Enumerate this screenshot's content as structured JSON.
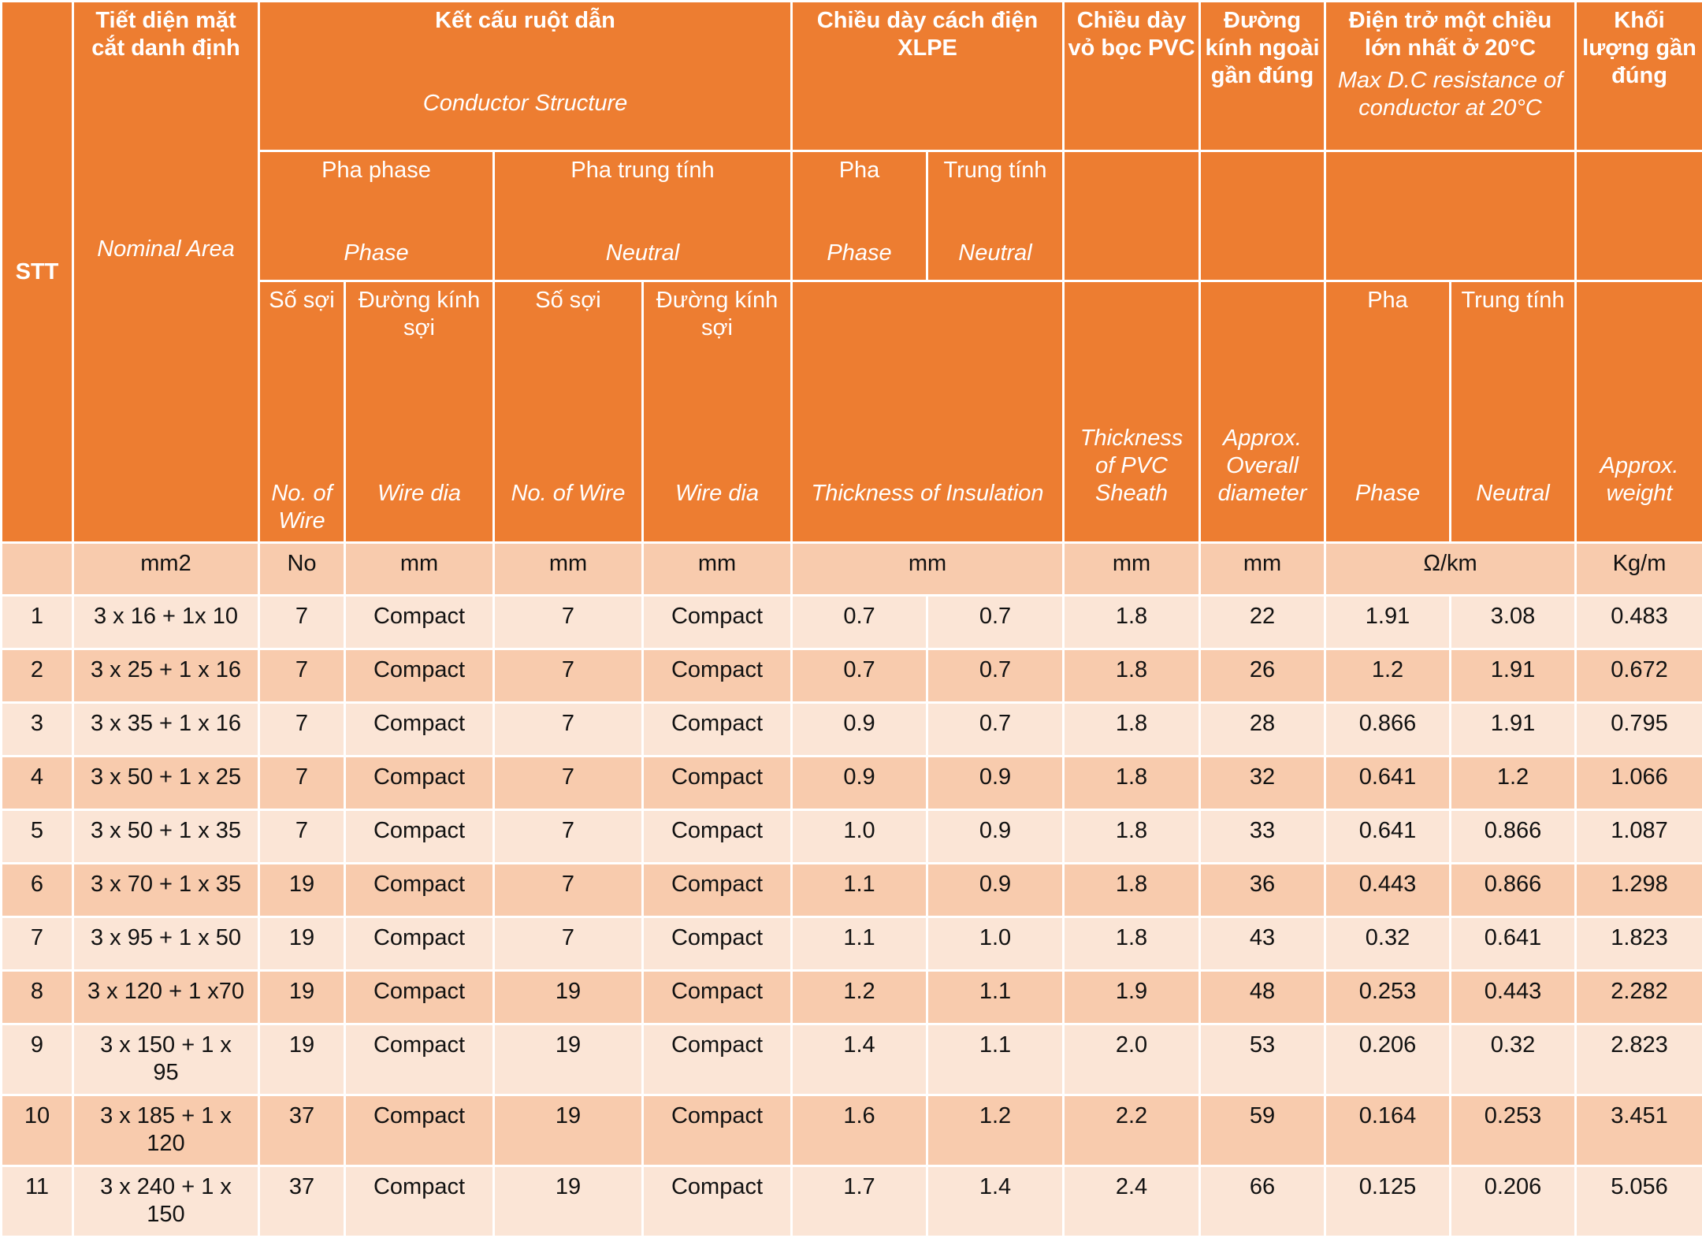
{
  "header": {
    "stt": "STT",
    "nominal_area": {
      "vi": "Tiết diện mặt cắt danh định",
      "en": "Nominal Area"
    },
    "conductor_structure": {
      "vi": "Kết cấu ruột dẫn",
      "en": "Conductor Structure"
    },
    "insulation": {
      "vi": "Chiều dày cách điện XLPE",
      "en": "Thickness of Insulation"
    },
    "sheath": {
      "vi": "Chiều dày vỏ bọc PVC",
      "en": "Thickness of PVC Sheath"
    },
    "overall_diameter": {
      "vi": "Đường kính ngoài gần đúng",
      "en": "Approx. Overall diameter"
    },
    "resistance": {
      "vi": "Điện trở một chiều lớn nhất ở 20°C",
      "en": "Max D.C resistance of conductor at 20°C"
    },
    "weight": {
      "vi": "Khối lượng gần đúng",
      "en": "Approx. weight"
    },
    "phase_group": {
      "vi": "Pha phase",
      "en": "Phase"
    },
    "neutral_group": {
      "vi": "Pha trung tính",
      "en": "Neutral"
    },
    "ins_phase": {
      "vi": "Pha",
      "en": "Phase"
    },
    "ins_neutral": {
      "vi": "Trung tính",
      "en": "Neutral"
    },
    "no_wire": {
      "vi": "Số sợi",
      "en": "No. of Wire"
    },
    "wire_dia": {
      "vi": "Đường kính sợi",
      "en": "Wire dia"
    },
    "res_phase": {
      "vi": "Pha",
      "en": "Phase"
    },
    "res_neutral": {
      "vi": "Trung tính",
      "en": "Neutral"
    }
  },
  "units": {
    "area": "mm2",
    "phase_no": "No",
    "phase_dia": "mm",
    "neutral_no": "mm",
    "neutral_dia": "mm",
    "insulation": "mm",
    "sheath": "mm",
    "diameter": "mm",
    "resistance": "Ω/km",
    "weight": "Kg/m"
  },
  "rows": [
    {
      "stt": "1",
      "area": "3 x 16 + 1x 10",
      "phase_no": "7",
      "phase_dia": "Compact",
      "neutral_no": "7",
      "neutral_dia": "Compact",
      "ins_phase": "0.7",
      "ins_neutral": "0.7",
      "sheath": "1.8",
      "diameter": "22",
      "res_phase": "1.91",
      "res_neutral": "3.08",
      "weight": "0.483"
    },
    {
      "stt": "2",
      "area": "3 x 25 + 1 x 16",
      "phase_no": "7",
      "phase_dia": "Compact",
      "neutral_no": "7",
      "neutral_dia": "Compact",
      "ins_phase": "0.7",
      "ins_neutral": "0.7",
      "sheath": "1.8",
      "diameter": "26",
      "res_phase": "1.2",
      "res_neutral": "1.91",
      "weight": "0.672"
    },
    {
      "stt": "3",
      "area": "3 x 35 + 1 x 16",
      "phase_no": "7",
      "phase_dia": "Compact",
      "neutral_no": "7",
      "neutral_dia": "Compact",
      "ins_phase": "0.9",
      "ins_neutral": "0.7",
      "sheath": "1.8",
      "diameter": "28",
      "res_phase": "0.866",
      "res_neutral": "1.91",
      "weight": "0.795"
    },
    {
      "stt": "4",
      "area": "3 x 50 + 1 x 25",
      "phase_no": "7",
      "phase_dia": "Compact",
      "neutral_no": "7",
      "neutral_dia": "Compact",
      "ins_phase": "0.9",
      "ins_neutral": "0.9",
      "sheath": "1.8",
      "diameter": "32",
      "res_phase": "0.641",
      "res_neutral": "1.2",
      "weight": "1.066"
    },
    {
      "stt": "5",
      "area": "3 x 50 + 1 x 35",
      "phase_no": "7",
      "phase_dia": "Compact",
      "neutral_no": "7",
      "neutral_dia": "Compact",
      "ins_phase": "1.0",
      "ins_neutral": "0.9",
      "sheath": "1.8",
      "diameter": "33",
      "res_phase": "0.641",
      "res_neutral": "0.866",
      "weight": "1.087"
    },
    {
      "stt": "6",
      "area": "3 x 70 + 1 x 35",
      "phase_no": "19",
      "phase_dia": "Compact",
      "neutral_no": "7",
      "neutral_dia": "Compact",
      "ins_phase": "1.1",
      "ins_neutral": "0.9",
      "sheath": "1.8",
      "diameter": "36",
      "res_phase": "0.443",
      "res_neutral": "0.866",
      "weight": "1.298"
    },
    {
      "stt": "7",
      "area": "3 x 95 + 1 x 50",
      "phase_no": "19",
      "phase_dia": "Compact",
      "neutral_no": "7",
      "neutral_dia": "Compact",
      "ins_phase": "1.1",
      "ins_neutral": "1.0",
      "sheath": "1.8",
      "diameter": "43",
      "res_phase": "0.32",
      "res_neutral": "0.641",
      "weight": "1.823"
    },
    {
      "stt": "8",
      "area": "3 x 120 + 1 x70",
      "phase_no": "19",
      "phase_dia": "Compact",
      "neutral_no": "19",
      "neutral_dia": "Compact",
      "ins_phase": "1.2",
      "ins_neutral": "1.1",
      "sheath": "1.9",
      "diameter": "48",
      "res_phase": "0.253",
      "res_neutral": "0.443",
      "weight": "2.282"
    },
    {
      "stt": "9",
      "area": "3 x 150 + 1 x 95",
      "phase_no": "19",
      "phase_dia": "Compact",
      "neutral_no": "19",
      "neutral_dia": "Compact",
      "ins_phase": "1.4",
      "ins_neutral": "1.1",
      "sheath": "2.0",
      "diameter": "53",
      "res_phase": "0.206",
      "res_neutral": "0.32",
      "weight": "2.823"
    },
    {
      "stt": "10",
      "area": "3 x 185 + 1 x 120",
      "phase_no": "37",
      "phase_dia": "Compact",
      "neutral_no": "19",
      "neutral_dia": "Compact",
      "ins_phase": "1.6",
      "ins_neutral": "1.2",
      "sheath": "2.2",
      "diameter": "59",
      "res_phase": "0.164",
      "res_neutral": "0.253",
      "weight": "3.451"
    },
    {
      "stt": "11",
      "area": "3 x 240 + 1 x 150",
      "phase_no": "37",
      "phase_dia": "Compact",
      "neutral_no": "19",
      "neutral_dia": "Compact",
      "ins_phase": "1.7",
      "ins_neutral": "1.4",
      "sheath": "2.4",
      "diameter": "66",
      "res_phase": "0.125",
      "res_neutral": "0.206",
      "weight": "5.056"
    }
  ]
}
